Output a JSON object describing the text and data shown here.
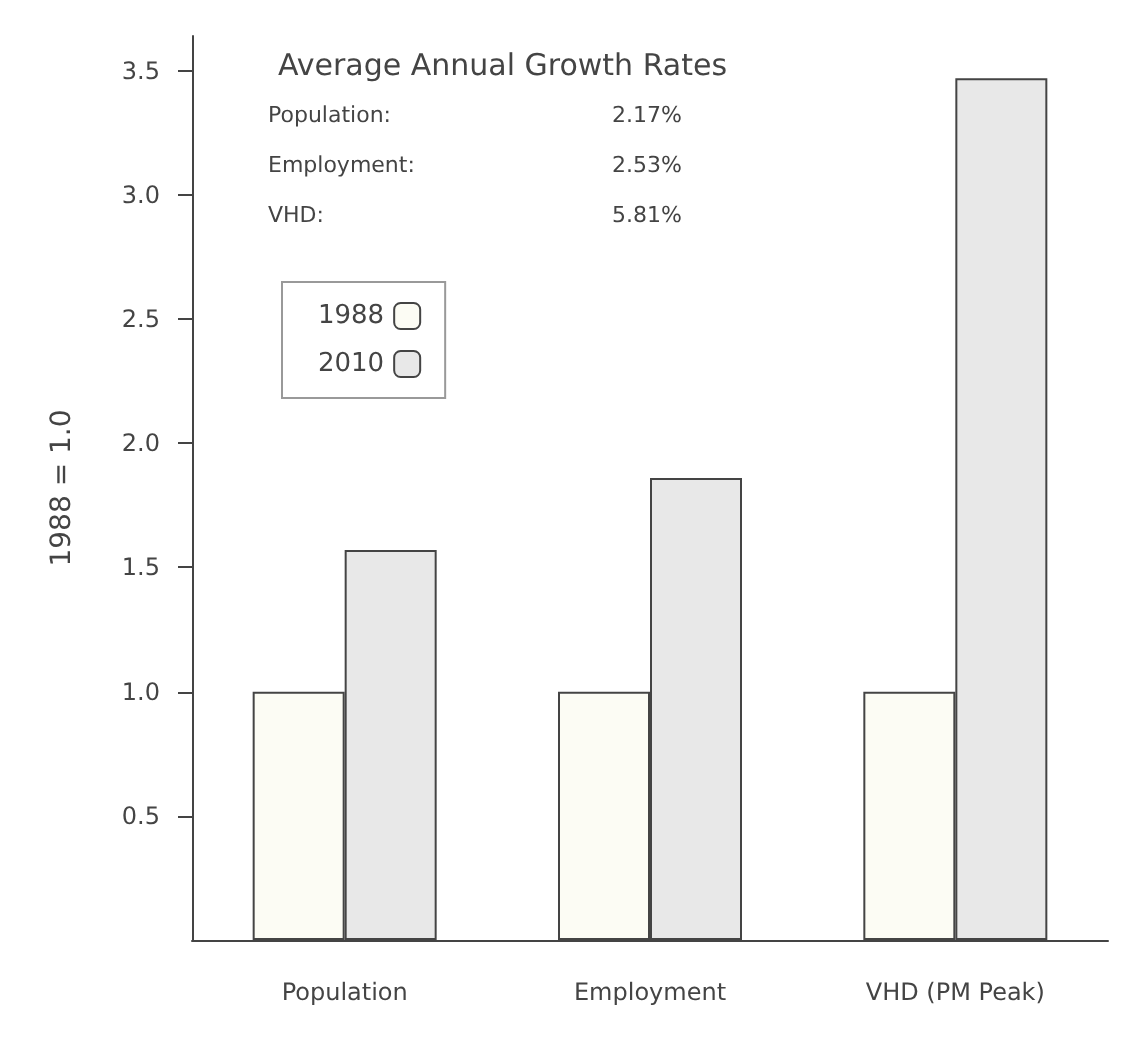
{
  "chart_data": {
    "type": "bar",
    "title": "Average Annual Growth Rates",
    "ylabel": "1988 = 1.0",
    "annotations": [
      "Population:",
      "2.17%",
      "Employment:",
      "2.53%",
      "VHD:",
      "5.81%"
    ],
    "categories": [
      "Population",
      "Employment",
      "VHD (PM Peak)"
    ],
    "series": [
      {
        "name": "1988",
        "color": "#fcfcf4",
        "values": [
          1.0,
          1.0,
          1.0
        ]
      },
      {
        "name": "2010",
        "color": "#e8e8e8",
        "values": [
          1.57,
          1.86,
          3.47
        ]
      }
    ],
    "ylim": [
      0,
      3.64
    ],
    "yticks": [
      {
        "value": 0.5,
        "label": "0.5"
      },
      {
        "value": 1,
        "label": "1.0"
      },
      {
        "value": 1.5,
        "label": "1.5"
      },
      {
        "value": 2,
        "label": "2.0"
      },
      {
        "value": 2.5,
        "label": "2.5"
      },
      {
        "value": 3,
        "label": "3.0"
      },
      {
        "value": 3.5,
        "label": "3.5"
      }
    ],
    "grid": false,
    "legend": "top left"
  }
}
